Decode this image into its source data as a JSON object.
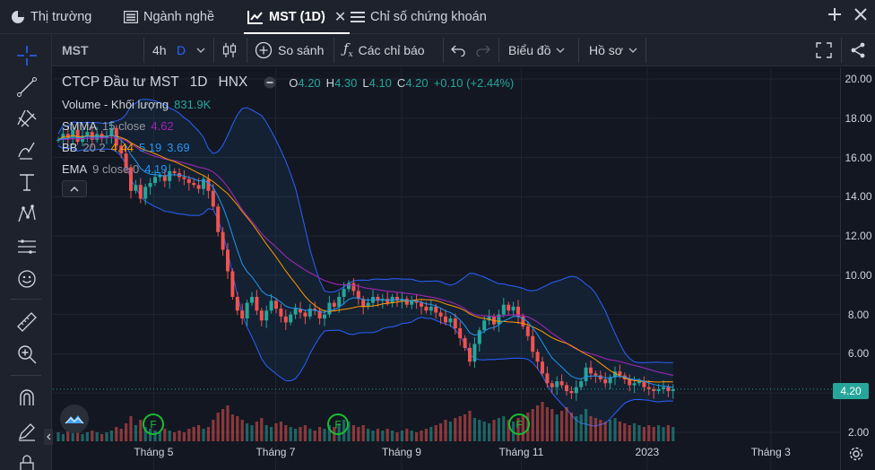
{
  "tabs": [
    {
      "label": "Thị trường",
      "icon": "pie-chart-icon"
    },
    {
      "label": "Ngành nghề",
      "icon": "list-icon"
    },
    {
      "label": "MST (1D)",
      "icon": "chart-icon",
      "active": true
    },
    {
      "label": "Chỉ số chứng khoán",
      "icon": "menu-icon"
    }
  ],
  "toolbar": {
    "symbol": "MST",
    "interval_alt": "4h",
    "interval": "D",
    "compare_label": "So sánh",
    "indicators_label": "Các chỉ báo",
    "chart_label": "Biểu đồ",
    "profile_label": "Hồ sơ"
  },
  "legend": {
    "title": "CTCP Đầu tư MST",
    "interval": "1D",
    "exchange": "HNX",
    "o_label": "O",
    "o": "4.20",
    "h_label": "H",
    "h": "4.30",
    "l_label": "L",
    "l": "4.10",
    "c_label": "C",
    "c": "4.20",
    "change": "+0.10 (+2.44%)",
    "volume_label": "Volume - Khối lượng",
    "volume": "831.9K",
    "smma_label": "SMMA",
    "smma_params": "15 close",
    "smma": "4.62",
    "bb_label": "BB",
    "bb_params": "20 2",
    "bb_basis": "4.44",
    "bb_upper": "5.19",
    "bb_lower": "3.69",
    "ema_label": "EMA",
    "ema_params": "9 close 0",
    "ema": "4.19"
  },
  "price_axis": [
    "20.00",
    "18.00",
    "16.00",
    "14.00",
    "12.00",
    "10.00",
    "8.00",
    "6.00",
    "4.00",
    "2.00"
  ],
  "last_price": "4.20",
  "time_axis": [
    "Tháng 5",
    "Tháng 7",
    "Tháng 9",
    "Tháng 11",
    "2023",
    "Tháng 3"
  ],
  "events": [
    "F",
    "F",
    "F"
  ],
  "colors": {
    "up": "#26a69a",
    "down": "#ef5350",
    "bb": "#2962ff",
    "smma": "#9c27b0",
    "ema": "#ff9800",
    "bg": "#131722"
  },
  "chart_data": {
    "type": "candlestick",
    "ylim": [
      2,
      20
    ],
    "close": [
      16.9,
      17.2,
      17.0,
      17.4,
      16.8,
      17.1,
      17.3,
      16.9,
      17.2,
      17.0,
      17.1,
      17.5,
      16.6,
      16.2,
      15.5,
      14.3,
      14.6,
      13.9,
      14.5,
      14.7,
      15.0,
      15.1,
      14.8,
      15.3,
      15.2,
      15.0,
      14.9,
      14.7,
      14.6,
      14.4,
      14.9,
      14.3,
      13.5,
      12.2,
      11.3,
      10.2,
      8.9,
      8.2,
      7.8,
      8.6,
      8.9,
      8.2,
      7.7,
      8.2,
      8.7,
      8.3,
      7.9,
      7.6,
      8.0,
      8.3,
      8.1,
      7.9,
      8.3,
      8.2,
      7.8,
      8.0,
      8.6,
      8.4,
      8.9,
      9.3,
      9.6,
      9.2,
      8.8,
      8.4,
      8.6,
      8.9,
      8.7,
      8.8,
      8.6,
      8.9,
      8.7,
      8.8,
      8.5,
      8.7,
      8.6,
      8.4,
      8.2,
      8.4,
      8.1,
      7.9,
      7.6,
      7.8,
      7.3,
      6.8,
      6.3,
      5.6,
      6.5,
      7.2,
      7.7,
      7.9,
      7.5,
      8.0,
      8.5,
      8.2,
      8.4,
      7.9,
      7.4,
      6.9,
      6.1,
      5.6,
      5.0,
      4.5,
      4.3,
      4.6,
      4.4,
      4.1,
      4.0,
      4.3,
      4.6,
      5.3,
      5.0,
      4.9,
      4.7,
      4.5,
      4.8,
      5.1,
      4.9,
      4.7,
      4.4,
      4.5,
      4.6,
      4.3,
      4.2,
      4.1,
      4.2,
      4.3,
      4.1,
      4.2
    ],
    "volume": [
      0.5,
      0.4,
      0.6,
      0.5,
      0.7,
      0.4,
      0.5,
      0.6,
      0.5,
      0.4,
      0.5,
      0.6,
      0.8,
      0.7,
      1.0,
      1.4,
      0.9,
      1.2,
      0.8,
      0.7,
      0.6,
      0.5,
      0.7,
      0.6,
      0.5,
      0.6,
      0.5,
      0.7,
      0.8,
      0.9,
      0.7,
      0.8,
      1.2,
      1.6,
      1.8,
      2.0,
      1.5,
      1.4,
      1.2,
      1.0,
      0.9,
      1.1,
      1.3,
      0.9,
      0.8,
      1.0,
      1.1,
      0.9,
      0.8,
      0.7,
      0.8,
      0.9,
      0.7,
      0.6,
      0.8,
      0.7,
      0.9,
      0.8,
      1.0,
      1.2,
      1.1,
      0.9,
      0.8,
      0.9,
      0.7,
      0.6,
      0.7,
      0.6,
      0.7,
      0.6,
      0.5,
      0.6,
      0.7,
      0.6,
      0.5,
      0.6,
      0.7,
      0.8,
      0.9,
      1.0,
      1.2,
      1.1,
      1.3,
      1.4,
      1.5,
      1.7,
      1.3,
      1.2,
      1.1,
      1.0,
      1.2,
      1.3,
      1.4,
      1.2,
      1.1,
      1.3,
      1.5,
      1.6,
      1.8,
      2.0,
      2.2,
      1.9,
      1.8,
      1.5,
      1.7,
      1.9,
      1.6,
      1.4,
      1.5,
      1.8,
      1.4,
      1.3,
      1.2,
      1.1,
      1.2,
      1.3,
      1.1,
      1.0,
      0.9,
      1.0,
      0.9,
      0.8,
      0.9,
      0.8,
      0.9,
      0.8,
      0.9,
      0.8
    ]
  }
}
